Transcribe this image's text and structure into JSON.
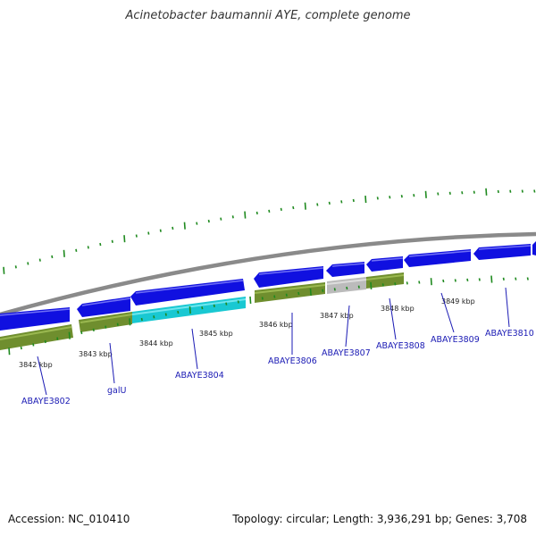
{
  "title": "Acinetobacter baumannii AYE, complete genome",
  "footer": {
    "accession": "Accession: NC_010410",
    "summary": "Topology: circular; Length: 3,936,291 bp; Genes: 3,708"
  },
  "colors": {
    "backbone": "#8a8a8a",
    "gene_forward": "#1010e0",
    "gene_forward_light": "#5a5af0",
    "gene_reverse": "#6f8e2e",
    "gene_reverse_light": "#9ab850",
    "gene_cyan": "#19c8d2",
    "gene_gray": "#bbbbbb",
    "tick": "#1f8a1f",
    "label": "#1a1ab4"
  },
  "kbp_labels": [
    "3842 kbp",
    "3843 kbp",
    "3844 kbp",
    "3845 kbp",
    "3846 kbp",
    "3847 kbp",
    "3848 kbp",
    "3849 kbp"
  ],
  "gene_labels": [
    "ABAYE3802",
    "galU",
    "ABAYE3804",
    "ABAYE3806",
    "ABAYE3807",
    "ABAYE3808",
    "ABAYE3809",
    "ABAYE3810"
  ]
}
